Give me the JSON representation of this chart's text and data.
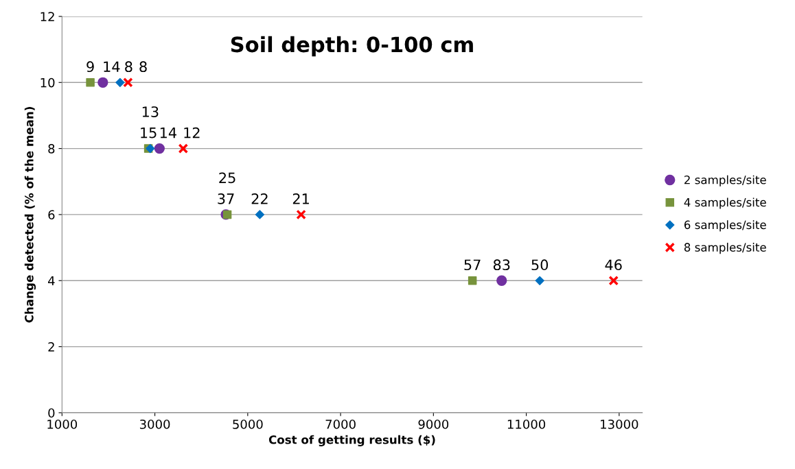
{
  "chart_data": {
    "type": "scatter",
    "title": "Soil depth: 0-100 cm",
    "xlabel": "Cost of getting results ($)",
    "ylabel": "Change detected (% of the mean)",
    "xlim": [
      1000,
      13500
    ],
    "xticks": [
      1000,
      3000,
      5000,
      7000,
      9000,
      11000,
      13000
    ],
    "ylim": [
      0,
      12
    ],
    "yticks": [
      0,
      2,
      4,
      6,
      8,
      10,
      12
    ],
    "grid": "y",
    "legend": "right",
    "series": [
      {
        "name": "2 samples/site",
        "color": "#7030a0",
        "marker": "circle",
        "x": [
          1880,
          3100,
          4530,
          10470
        ],
        "values": [
          10,
          8,
          6,
          4
        ]
      },
      {
        "name": "4 samples/site",
        "color": "#77933c",
        "marker": "square",
        "x": [
          1610,
          2860,
          4560,
          9840
        ],
        "values": [
          10,
          8,
          6,
          4
        ]
      },
      {
        "name": "6 samples/site",
        "color": "#0070c0",
        "marker": "diamond",
        "x": [
          2250,
          2900,
          5260,
          11290
        ],
        "values": [
          10,
          8,
          6,
          4
        ]
      },
      {
        "name": "8 samples/site",
        "color": "#ff0000",
        "marker": "cross",
        "x": [
          2420,
          3610,
          6150,
          12880
        ],
        "values": [
          10,
          8,
          6,
          4
        ]
      }
    ],
    "annotations": [
      {
        "text": "14",
        "x": 1880,
        "y": 10
      },
      {
        "text": "14",
        "x": 3100,
        "y": 8
      },
      {
        "text": "37",
        "x": 4530,
        "y": 6
      },
      {
        "text": "83",
        "x": 10470,
        "y": 4
      },
      {
        "text": "9",
        "x": 1610,
        "y": 10
      },
      {
        "text": "15",
        "x": 2860,
        "y": 8
      },
      {
        "text": "25",
        "x": 4560,
        "y": 6
      },
      {
        "text": "57",
        "x": 9840,
        "y": 4
      },
      {
        "text": "8",
        "x": 2250,
        "y": 10
      },
      {
        "text": "13",
        "x": 2900,
        "y": 8
      },
      {
        "text": "22",
        "x": 5260,
        "y": 6
      },
      {
        "text": "50",
        "x": 11290,
        "y": 4
      },
      {
        "text": "8",
        "x": 2420,
        "y": 10
      },
      {
        "text": "12",
        "x": 3610,
        "y": 8
      },
      {
        "text": "21",
        "x": 6150,
        "y": 6
      },
      {
        "text": "46",
        "x": 12880,
        "y": 4
      }
    ]
  }
}
